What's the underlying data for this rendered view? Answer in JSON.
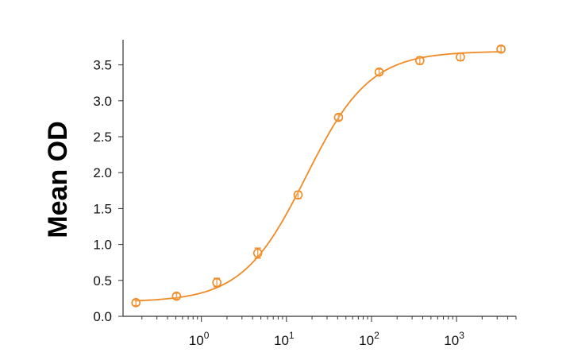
{
  "chart_data": {
    "type": "scatter",
    "title": "",
    "xlabel": "",
    "ylabel": "Mean OD",
    "xscale": "log",
    "xlim": [
      0.12,
      5000
    ],
    "ylim": [
      0,
      3.85
    ],
    "grid": false,
    "legend": "none",
    "y_ticks": [
      0.0,
      0.5,
      1.0,
      1.5,
      2.0,
      2.5,
      3.0,
      3.5
    ],
    "y_tick_labels": [
      "0.0",
      "0.5",
      "1.0",
      "1.5",
      "2.0",
      "2.5",
      "3.0",
      "3.5"
    ],
    "x_ticks": [
      1,
      10,
      100,
      1000
    ],
    "x_tick_labels": [
      {
        "base": "10",
        "exp": "0"
      },
      {
        "base": "10",
        "exp": "1"
      },
      {
        "base": "10",
        "exp": "2"
      },
      {
        "base": "10",
        "exp": "3"
      }
    ],
    "series": [
      {
        "points": [
          {
            "x": 0.17,
            "y": 0.19,
            "err": 0.04
          },
          {
            "x": 0.51,
            "y": 0.28,
            "err": 0.04
          },
          {
            "x": 1.52,
            "y": 0.47,
            "err": 0.06
          },
          {
            "x": 4.6,
            "y": 0.88,
            "err": 0.07
          },
          {
            "x": 13.7,
            "y": 1.69,
            "err": 0.05
          },
          {
            "x": 41,
            "y": 2.77,
            "err": 0.04
          },
          {
            "x": 123,
            "y": 3.4,
            "err": 0.04
          },
          {
            "x": 370,
            "y": 3.56,
            "err": 0.05
          },
          {
            "x": 1110,
            "y": 3.61,
            "err": 0.05
          },
          {
            "x": 3330,
            "y": 3.72,
            "err": 0.04
          }
        ]
      }
    ],
    "fit": {
      "model": "4PL",
      "bottom": 0.2,
      "top": 3.69,
      "ec50": 17.0,
      "hill": 1.16
    },
    "color": "#f08a24"
  }
}
